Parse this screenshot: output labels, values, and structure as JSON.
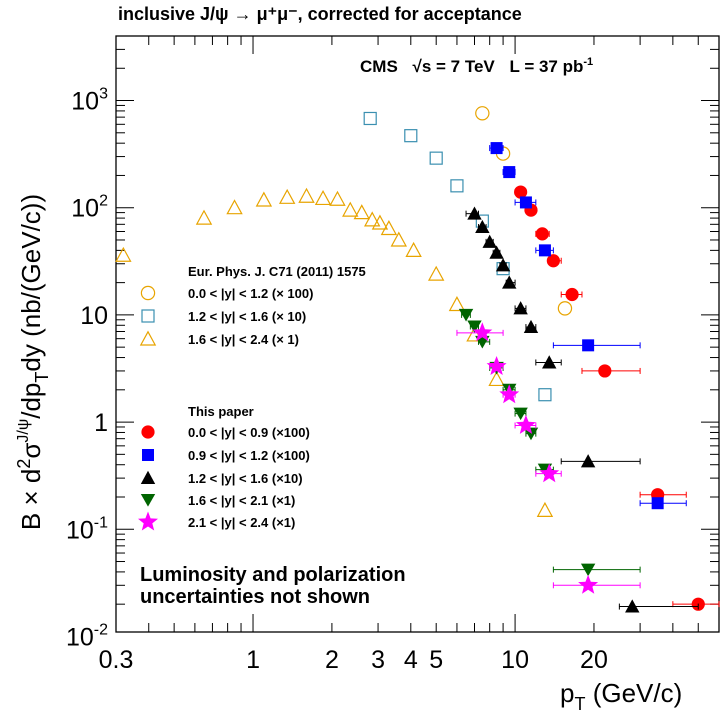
{
  "chart_data": {
    "type": "scatter",
    "title": "inclusive J/ψ → μ⁺μ⁻, corrected for acceptance",
    "annotation": {
      "experiment": "CMS",
      "energy": "√s = 7 TeV",
      "lumi": "L = 37 pb",
      "lumi_exp": "-1"
    },
    "note": [
      "Luminosity and polarization",
      "uncertainties not shown"
    ],
    "xlabel": "p_T (GeV/c)",
    "ylabel": "B × d²σ^{J/ψ}/dp_T dy (nb/(GeV/c))",
    "xscale": "log",
    "yscale": "log",
    "xlim": [
      0.3,
      60
    ],
    "ylim": [
      0.011,
      4000
    ],
    "xticks": [
      0.3,
      1,
      2,
      3,
      4,
      5,
      10,
      20
    ],
    "yticks": [
      {
        "v": 1000,
        "m": "10",
        "e": "3"
      },
      {
        "v": 100,
        "m": "10",
        "e": "2"
      },
      {
        "v": 10,
        "m": "10",
        "e": ""
      },
      {
        "v": 1,
        "m": "1",
        "e": ""
      },
      {
        "v": 0.1,
        "m": "10",
        "e": "-1"
      },
      {
        "v": 0.01,
        "m": "10",
        "e": "-2"
      }
    ],
    "legend_groups": [
      {
        "header": "Eur. Phys. J. C71 (2011) 1575",
        "entries": [
          "0.0 < |y| < 1.2 (× 100)",
          "1.2 < |y| < 1.6 (× 10)",
          "1.6 < |y| < 2.4 (× 1)"
        ]
      },
      {
        "header": "This paper",
        "entries": [
          "0.0 < |y| < 0.9 (×100)",
          "0.9 < |y| < 1.2 (×100)",
          "1.2 < |y| < 1.6 (×10)",
          "1.6 < |y| < 2.1 (×1)",
          "2.1 < |y| < 2.4 (×1)"
        ]
      }
    ],
    "series": [
      {
        "name": "0.0 < |y| < 1.2 (× 100)",
        "marker": "circle-open",
        "color": "#e8a400",
        "points": [
          {
            "x": 7.5,
            "y": 760
          },
          {
            "x": 9.0,
            "y": 320
          },
          {
            "x": 15.5,
            "y": 11.5
          }
        ]
      },
      {
        "name": "1.2 < |y| < 1.6 (× 10)",
        "marker": "square-open",
        "color": "#3a8fb0",
        "points": [
          {
            "x": 2.8,
            "y": 680
          },
          {
            "x": 4.0,
            "y": 470
          },
          {
            "x": 5.0,
            "y": 290
          },
          {
            "x": 6.0,
            "y": 160
          },
          {
            "x": 7.5,
            "y": 75
          },
          {
            "x": 9.0,
            "y": 27
          },
          {
            "x": 13.0,
            "y": 1.8
          }
        ]
      },
      {
        "name": "1.6 < |y| < 2.4 (× 1)",
        "marker": "triangle-open",
        "color": "#e8a400",
        "points": [
          {
            "x": 0.32,
            "y": 36
          },
          {
            "x": 0.65,
            "y": 80
          },
          {
            "x": 0.85,
            "y": 100
          },
          {
            "x": 1.1,
            "y": 118
          },
          {
            "x": 1.35,
            "y": 125
          },
          {
            "x": 1.6,
            "y": 128
          },
          {
            "x": 1.85,
            "y": 122
          },
          {
            "x": 2.1,
            "y": 120
          },
          {
            "x": 2.35,
            "y": 95
          },
          {
            "x": 2.6,
            "y": 90
          },
          {
            "x": 2.85,
            "y": 77
          },
          {
            "x": 3.05,
            "y": 72
          },
          {
            "x": 3.3,
            "y": 64
          },
          {
            "x": 3.6,
            "y": 50
          },
          {
            "x": 4.1,
            "y": 40
          },
          {
            "x": 5.0,
            "y": 24
          },
          {
            "x": 6.0,
            "y": 12.5
          },
          {
            "x": 7.0,
            "y": 6.5
          },
          {
            "x": 8.5,
            "y": 2.5
          },
          {
            "x": 13.0,
            "y": 0.15
          }
        ]
      },
      {
        "name": "0.0 < |y| < 0.9 (×100)",
        "marker": "circle",
        "color": "#ff0000",
        "points": [
          {
            "x": 10.5,
            "y": 140
          },
          {
            "x": 11.5,
            "y": 95
          },
          {
            "x": 12.7,
            "y": 57
          },
          {
            "x": 14.0,
            "y": 32
          },
          {
            "x": 16.5,
            "y": 15.5
          },
          {
            "x": 22.0,
            "y": 3.0
          },
          {
            "x": 35.0,
            "y": 0.21
          },
          {
            "x": 50.0,
            "y": 0.02
          }
        ],
        "xerr": [
          [
            10.0,
            11.0
          ],
          [
            11.0,
            12.0
          ],
          [
            12.0,
            13.5
          ],
          [
            13.5,
            15.0
          ],
          [
            15.0,
            18.0
          ],
          [
            18.0,
            30.0
          ],
          [
            30.0,
            45.0
          ],
          [
            40.0,
            60.0
          ]
        ]
      },
      {
        "name": "0.9 < |y| < 1.2 (×100)",
        "marker": "square",
        "color": "#0000ff",
        "points": [
          {
            "x": 8.5,
            "y": 360
          },
          {
            "x": 9.5,
            "y": 215
          },
          {
            "x": 11.0,
            "y": 112
          },
          {
            "x": 13.0,
            "y": 40
          },
          {
            "x": 19.0,
            "y": 5.2
          },
          {
            "x": 35.0,
            "y": 0.175
          }
        ],
        "xerr": [
          [
            8.0,
            9.0
          ],
          [
            9.0,
            10.0
          ],
          [
            10.0,
            12.0
          ],
          [
            12.0,
            14.0
          ],
          [
            14.0,
            30.0
          ],
          [
            30.0,
            45.0
          ]
        ]
      },
      {
        "name": "1.2 < |y| < 1.6 (×10)",
        "marker": "triangle",
        "color": "#000000",
        "points": [
          {
            "x": 7.0,
            "y": 88
          },
          {
            "x": 7.5,
            "y": 66
          },
          {
            "x": 8.0,
            "y": 48
          },
          {
            "x": 8.5,
            "y": 38
          },
          {
            "x": 9.0,
            "y": 29
          },
          {
            "x": 9.5,
            "y": 20
          },
          {
            "x": 10.5,
            "y": 11.5
          },
          {
            "x": 11.5,
            "y": 7.7
          },
          {
            "x": 13.5,
            "y": 3.6
          },
          {
            "x": 19.0,
            "y": 0.43
          },
          {
            "x": 28.0,
            "y": 0.019
          }
        ],
        "xerr": [
          [
            6.5,
            7.25
          ],
          [
            7.25,
            7.75
          ],
          [
            7.75,
            8.25
          ],
          [
            8.25,
            8.75
          ],
          [
            8.75,
            9.25
          ],
          [
            9.25,
            10.0
          ],
          [
            10.0,
            11.0
          ],
          [
            11.0,
            12.0
          ],
          [
            12.0,
            15.0
          ],
          [
            15.0,
            30.0
          ],
          [
            25.0,
            50.0
          ]
        ]
      },
      {
        "name": "1.6 < |y| < 2.1 (×1)",
        "marker": "triangle-down",
        "color": "#006400",
        "points": [
          {
            "x": 6.5,
            "y": 10
          },
          {
            "x": 7.0,
            "y": 7.8
          },
          {
            "x": 7.5,
            "y": 5.6
          },
          {
            "x": 8.5,
            "y": 3.2
          },
          {
            "x": 9.5,
            "y": 2.0
          },
          {
            "x": 10.5,
            "y": 1.2
          },
          {
            "x": 11.5,
            "y": 0.78
          },
          {
            "x": 13.0,
            "y": 0.36
          },
          {
            "x": 19.0,
            "y": 0.042
          }
        ],
        "xerr": [
          [
            6.25,
            6.75
          ],
          [
            6.75,
            7.25
          ],
          [
            7.25,
            8.0
          ],
          [
            8.0,
            9.0
          ],
          [
            9.0,
            10.0
          ],
          [
            10.0,
            11.0
          ],
          [
            11.0,
            12.0
          ],
          [
            12.0,
            14.0
          ],
          [
            14.0,
            30.0
          ]
        ]
      },
      {
        "name": "2.1 < |y| < 2.4 (×1)",
        "marker": "star",
        "color": "#ff00ff",
        "points": [
          {
            "x": 7.5,
            "y": 6.8
          },
          {
            "x": 8.5,
            "y": 3.3
          },
          {
            "x": 9.5,
            "y": 1.8
          },
          {
            "x": 11.0,
            "y": 0.93
          },
          {
            "x": 13.5,
            "y": 0.33
          },
          {
            "x": 19.0,
            "y": 0.03
          }
        ],
        "xerr": [
          [
            6.0,
            9.0
          ],
          [
            8.0,
            9.0
          ],
          [
            9.0,
            10.0
          ],
          [
            10.0,
            12.0
          ],
          [
            12.0,
            15.0
          ],
          [
            14.0,
            30.0
          ]
        ]
      }
    ]
  }
}
